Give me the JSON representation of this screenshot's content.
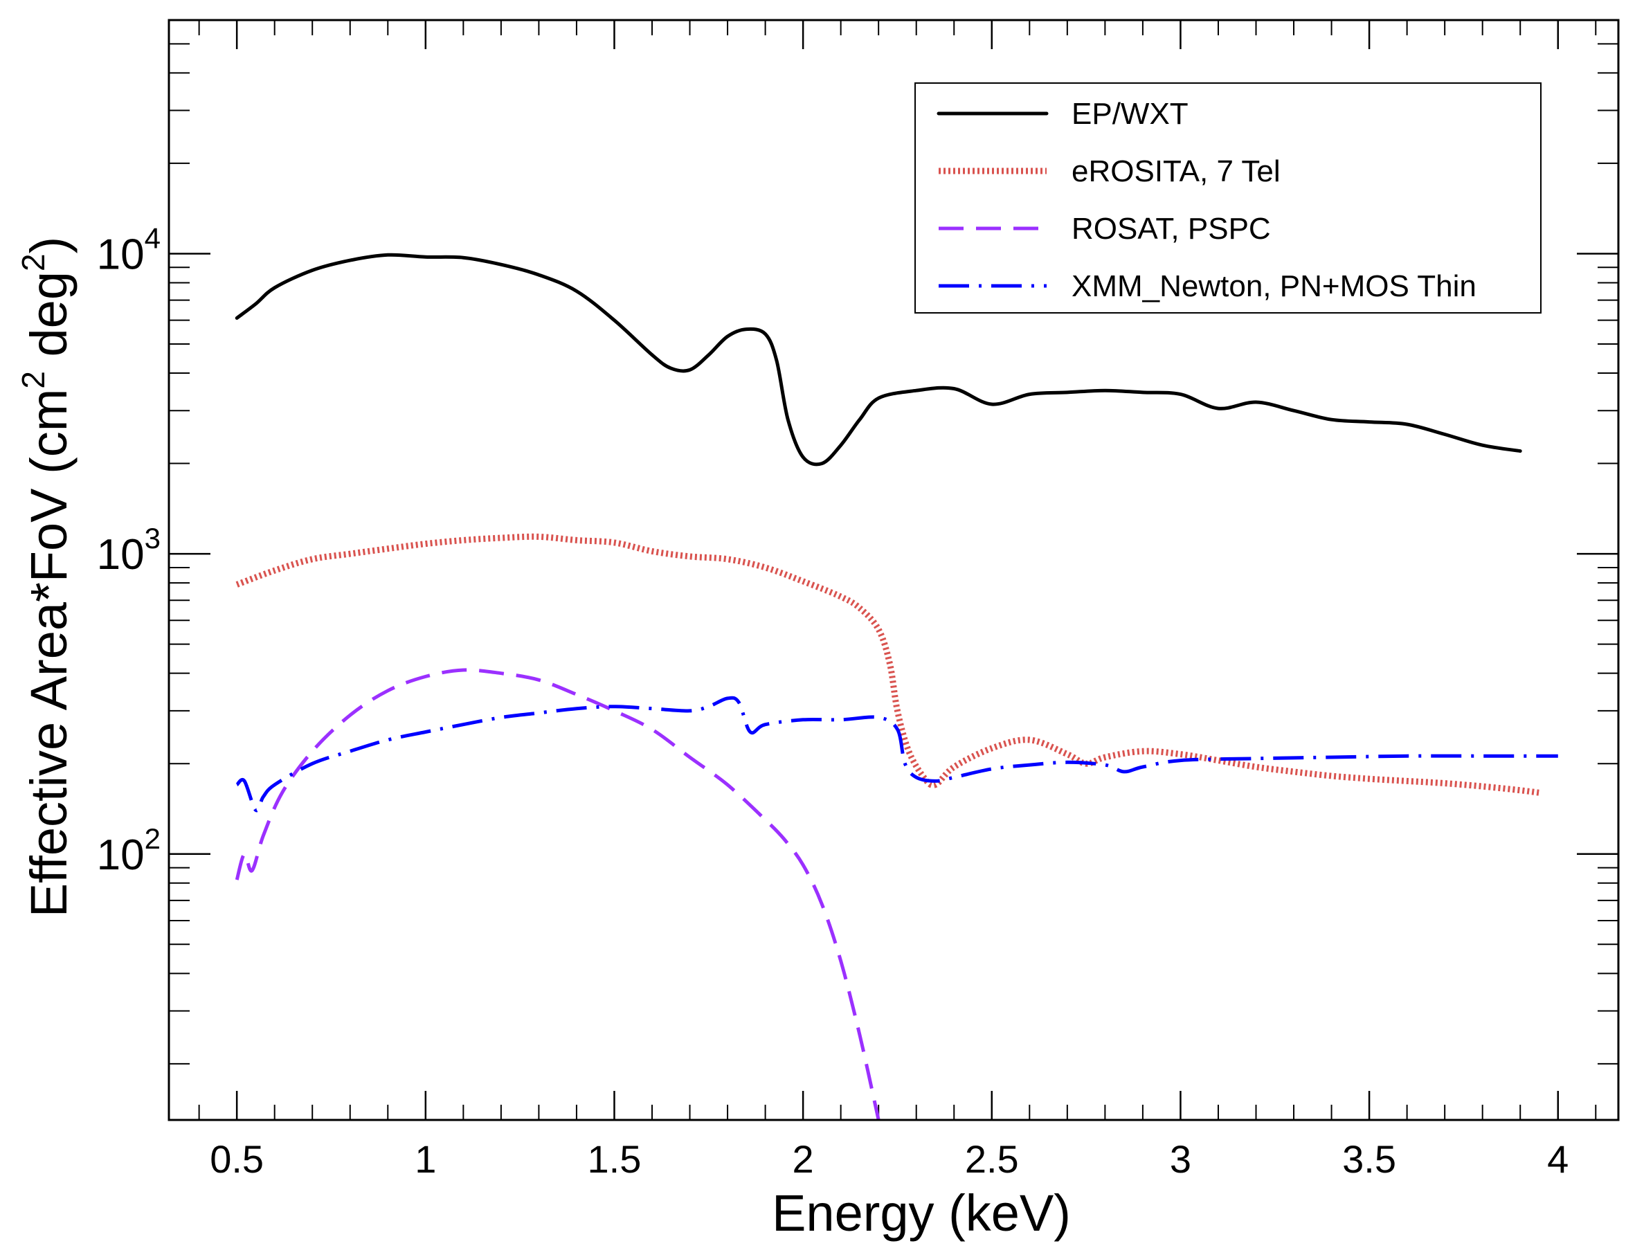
{
  "chart_data": {
    "type": "line",
    "title": "",
    "xlabel": "Energy (keV)",
    "ylabel": "Effective Area*FoV (cm^2 deg^2)",
    "ylabel_parts": {
      "a": "Effective Area*FoV (cm",
      "sup1": "2",
      "b": " deg",
      "sup2": "2",
      "c": ")"
    },
    "xlim": [
      0.32,
      4.16
    ],
    "ylim": [
      13,
      60000
    ],
    "yscale": "log",
    "x_ticks": [
      0.5,
      1,
      1.5,
      2,
      2.5,
      3,
      3.5,
      4
    ],
    "x_tick_labels": [
      "0.5",
      "1",
      "1.5",
      "2",
      "2.5",
      "3",
      "3.5",
      "4"
    ],
    "y_ticks": [
      {
        "value": 100,
        "base": "10",
        "exp": "2"
      },
      {
        "value": 1000,
        "base": "10",
        "exp": "3"
      },
      {
        "value": 10000,
        "base": "10",
        "exp": "4"
      }
    ],
    "grid": false,
    "legend_position": "top-right",
    "series": [
      {
        "name": "EP/WXT",
        "color": "#000000",
        "style": "solid",
        "points": [
          [
            0.5,
            6100
          ],
          [
            0.55,
            6800
          ],
          [
            0.6,
            7700
          ],
          [
            0.7,
            8800
          ],
          [
            0.8,
            9500
          ],
          [
            0.9,
            9900
          ],
          [
            1.0,
            9750
          ],
          [
            1.1,
            9700
          ],
          [
            1.2,
            9200
          ],
          [
            1.3,
            8500
          ],
          [
            1.4,
            7500
          ],
          [
            1.5,
            6000
          ],
          [
            1.6,
            4600
          ],
          [
            1.65,
            4150
          ],
          [
            1.7,
            4100
          ],
          [
            1.75,
            4600
          ],
          [
            1.8,
            5300
          ],
          [
            1.85,
            5600
          ],
          [
            1.9,
            5400
          ],
          [
            1.93,
            4400
          ],
          [
            1.96,
            2800
          ],
          [
            2.0,
            2100
          ],
          [
            2.05,
            2000
          ],
          [
            2.1,
            2300
          ],
          [
            2.15,
            2800
          ],
          [
            2.2,
            3300
          ],
          [
            2.3,
            3500
          ],
          [
            2.4,
            3550
          ],
          [
            2.5,
            3150
          ],
          [
            2.6,
            3400
          ],
          [
            2.7,
            3450
          ],
          [
            2.8,
            3500
          ],
          [
            2.9,
            3450
          ],
          [
            3.0,
            3400
          ],
          [
            3.1,
            3050
          ],
          [
            3.2,
            3200
          ],
          [
            3.3,
            3000
          ],
          [
            3.4,
            2800
          ],
          [
            3.5,
            2750
          ],
          [
            3.6,
            2700
          ],
          [
            3.7,
            2500
          ],
          [
            3.8,
            2300
          ],
          [
            3.9,
            2200
          ]
        ]
      },
      {
        "name": "eROSITA, 7 Tel",
        "color": "#d9534f",
        "style": "dotted",
        "points": [
          [
            0.5,
            790
          ],
          [
            0.6,
            880
          ],
          [
            0.7,
            960
          ],
          [
            0.8,
            1000
          ],
          [
            0.9,
            1040
          ],
          [
            1.0,
            1080
          ],
          [
            1.1,
            1110
          ],
          [
            1.2,
            1130
          ],
          [
            1.3,
            1140
          ],
          [
            1.4,
            1110
          ],
          [
            1.5,
            1090
          ],
          [
            1.6,
            1020
          ],
          [
            1.7,
            980
          ],
          [
            1.8,
            960
          ],
          [
            1.9,
            900
          ],
          [
            2.0,
            810
          ],
          [
            2.1,
            720
          ],
          [
            2.15,
            660
          ],
          [
            2.2,
            560
          ],
          [
            2.23,
            430
          ],
          [
            2.25,
            300
          ],
          [
            2.28,
            220
          ],
          [
            2.32,
            180
          ],
          [
            2.35,
            170
          ],
          [
            2.4,
            195
          ],
          [
            2.5,
            225
          ],
          [
            2.6,
            240
          ],
          [
            2.7,
            215
          ],
          [
            2.75,
            200
          ],
          [
            2.8,
            210
          ],
          [
            2.9,
            220
          ],
          [
            3.0,
            215
          ],
          [
            3.1,
            205
          ],
          [
            3.2,
            195
          ],
          [
            3.3,
            188
          ],
          [
            3.4,
            182
          ],
          [
            3.5,
            178
          ],
          [
            3.6,
            175
          ],
          [
            3.7,
            172
          ],
          [
            3.8,
            168
          ],
          [
            3.9,
            163
          ],
          [
            3.95,
            160
          ]
        ]
      },
      {
        "name": "ROSAT, PSPC",
        "color": "#9b30ff",
        "style": "dashed",
        "points": [
          [
            0.5,
            82
          ],
          [
            0.52,
            100
          ],
          [
            0.54,
            88
          ],
          [
            0.57,
            115
          ],
          [
            0.62,
            160
          ],
          [
            0.7,
            220
          ],
          [
            0.8,
            290
          ],
          [
            0.9,
            350
          ],
          [
            1.0,
            390
          ],
          [
            1.1,
            410
          ],
          [
            1.2,
            400
          ],
          [
            1.3,
            380
          ],
          [
            1.4,
            340
          ],
          [
            1.5,
            300
          ],
          [
            1.6,
            260
          ],
          [
            1.7,
            210
          ],
          [
            1.8,
            170
          ],
          [
            1.9,
            130
          ],
          [
            1.95,
            112
          ],
          [
            2.0,
            92
          ],
          [
            2.05,
            68
          ],
          [
            2.1,
            44
          ],
          [
            2.15,
            25
          ],
          [
            2.2,
            13
          ]
        ]
      },
      {
        "name": "XMM_Newton, PN+MOS Thin",
        "color": "#0000ff",
        "style": "dashdot",
        "points": [
          [
            0.5,
            170
          ],
          [
            0.52,
            175
          ],
          [
            0.55,
            140
          ],
          [
            0.57,
            155
          ],
          [
            0.6,
            170
          ],
          [
            0.7,
            200
          ],
          [
            0.8,
            220
          ],
          [
            0.9,
            240
          ],
          [
            1.0,
            255
          ],
          [
            1.1,
            270
          ],
          [
            1.2,
            285
          ],
          [
            1.3,
            295
          ],
          [
            1.4,
            305
          ],
          [
            1.5,
            310
          ],
          [
            1.6,
            305
          ],
          [
            1.7,
            300
          ],
          [
            1.75,
            310
          ],
          [
            1.8,
            330
          ],
          [
            1.83,
            320
          ],
          [
            1.86,
            255
          ],
          [
            1.9,
            270
          ],
          [
            2.0,
            280
          ],
          [
            2.1,
            280
          ],
          [
            2.2,
            285
          ],
          [
            2.25,
            260
          ],
          [
            2.27,
            200
          ],
          [
            2.3,
            180
          ],
          [
            2.35,
            175
          ],
          [
            2.4,
            180
          ],
          [
            2.5,
            192
          ],
          [
            2.6,
            198
          ],
          [
            2.7,
            202
          ],
          [
            2.8,
            198
          ],
          [
            2.85,
            188
          ],
          [
            2.9,
            195
          ],
          [
            3.0,
            205
          ],
          [
            3.2,
            208
          ],
          [
            3.4,
            210
          ],
          [
            3.6,
            212
          ],
          [
            3.8,
            212
          ],
          [
            4.0,
            212
          ]
        ]
      }
    ]
  }
}
